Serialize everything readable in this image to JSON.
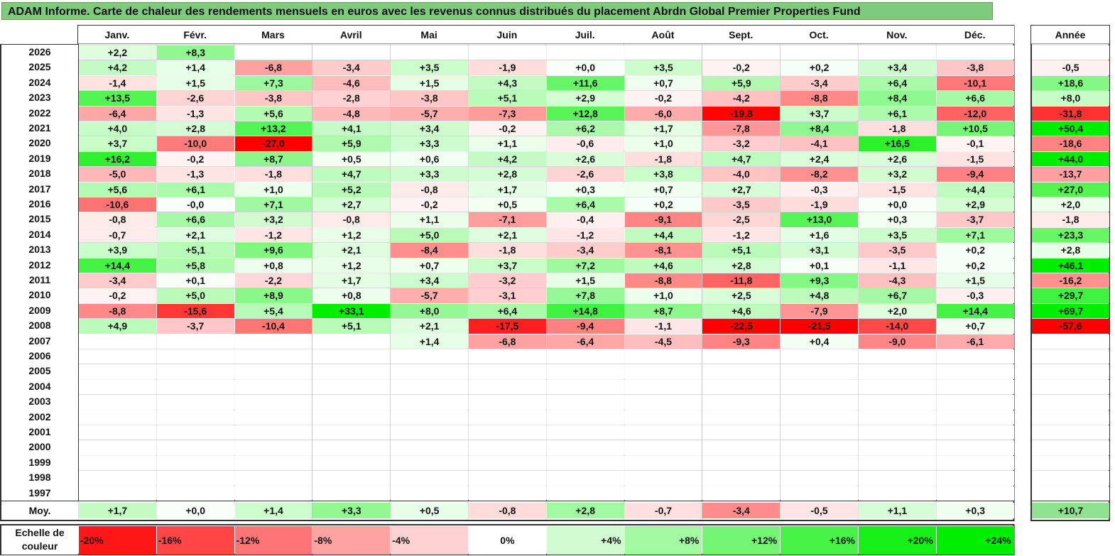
{
  "title": "ADAM Informe. Carte de chaleur des rendements mensuels en euros avec les revenus connus distribués du placement Abrdn Global Premier Properties Fund",
  "chart_data": {
    "type": "heatmap",
    "months": [
      "Janv.",
      "Févr.",
      "Mars",
      "Avril",
      "Mai",
      "Juin",
      "Juil.",
      "Août",
      "Sept.",
      "Oct.",
      "Nov.",
      "Déc."
    ],
    "year_header": "Année",
    "avg_label": "Moy.",
    "rows": [
      {
        "year": "2026",
        "m": [
          "+2,2",
          "+8,3",
          "",
          "",
          "",
          "",
          "",
          "",
          "",
          "",
          "",
          ""
        ],
        "y": ""
      },
      {
        "year": "2025",
        "m": [
          "+4,2",
          "+1,4",
          "-6,8",
          "-3,4",
          "+3,5",
          "-1,9",
          "+0,0",
          "+3,5",
          "-0,2",
          "+0,2",
          "+3,4",
          "-3,8"
        ],
        "y": "-0,5"
      },
      {
        "year": "2024",
        "m": [
          "-1,4",
          "+1,5",
          "+7,3",
          "-4,6",
          "+1,5",
          "+4,3",
          "+11,6",
          "+0,7",
          "+5,9",
          "-3,4",
          "+6,4",
          "-10,1"
        ],
        "y": "+18,6"
      },
      {
        "year": "2023",
        "m": [
          "+13,5",
          "-2,6",
          "-3,8",
          "-2,8",
          "-3,8",
          "+5,1",
          "+2,9",
          "-0,2",
          "-4,2",
          "-8,8",
          "+8,4",
          "+6,6"
        ],
        "y": "+8,0"
      },
      {
        "year": "2022",
        "m": [
          "-6,4",
          "-1,3",
          "+5,6",
          "-4,8",
          "-5,7",
          "-7,3",
          "+12,8",
          "-6,0",
          "-19,8",
          "+3,7",
          "+6,1",
          "-12,0"
        ],
        "y": "-31,8"
      },
      {
        "year": "2021",
        "m": [
          "+4,0",
          "+2,8",
          "+13,2",
          "+4,1",
          "+3,4",
          "-0,2",
          "+6,2",
          "+1,7",
          "-7,8",
          "+8,4",
          "-1,8",
          "+10,5"
        ],
        "y": "+50,4"
      },
      {
        "year": "2020",
        "m": [
          "+3,7",
          "-10,0",
          "-27,0",
          "+5,9",
          "+3,3",
          "+1,1",
          "-0,6",
          "+1,0",
          "-3,2",
          "-4,1",
          "+16,5",
          "-0,1"
        ],
        "y": "-18,6"
      },
      {
        "year": "2019",
        "m": [
          "+16,2",
          "-0,2",
          "+8,7",
          "+0,5",
          "+0,6",
          "+4,2",
          "+2,6",
          "-1,8",
          "+4,7",
          "+2,4",
          "+2,6",
          "-1,5"
        ],
        "y": "+44,0"
      },
      {
        "year": "2018",
        "m": [
          "-5,0",
          "-1,3",
          "-1,8",
          "+4,7",
          "+3,3",
          "+2,8",
          "-2,6",
          "+3,8",
          "-4,0",
          "-8,2",
          "+3,2",
          "-9,4"
        ],
        "y": "-13,7"
      },
      {
        "year": "2017",
        "m": [
          "+5,6",
          "+6,1",
          "+1,0",
          "+5,2",
          "-0,8",
          "+1,7",
          "+0,3",
          "+0,7",
          "+2,7",
          "-0,3",
          "-1,5",
          "+4,4"
        ],
        "y": "+27,0"
      },
      {
        "year": "2016",
        "m": [
          "-10,6",
          "-0,0",
          "+7,1",
          "+2,7",
          "-0,2",
          "+0,5",
          "+6,4",
          "+0,2",
          "-3,5",
          "-1,9",
          "+0,0",
          "+2,9"
        ],
        "y": "+2,0"
      },
      {
        "year": "2015",
        "m": [
          "-0,8",
          "+6,6",
          "+3,2",
          "-0,8",
          "+1,1",
          "-7,1",
          "-0,4",
          "-9,1",
          "-2,5",
          "+13,0",
          "+0,3",
          "-3,7"
        ],
        "y": "-1,8"
      },
      {
        "year": "2014",
        "m": [
          "-0,7",
          "+2,1",
          "-1,2",
          "+1,2",
          "+5,0",
          "+2,1",
          "-1,2",
          "+4,4",
          "-1,2",
          "+1,6",
          "+3,5",
          "+7,1"
        ],
        "y": "+23,3"
      },
      {
        "year": "2013",
        "m": [
          "+3,9",
          "+5,1",
          "+9,6",
          "+2,1",
          "-8,4",
          "-1,8",
          "-3,4",
          "-8,1",
          "+5,1",
          "+3,1",
          "-3,5",
          "+0,2"
        ],
        "y": "+2,8"
      },
      {
        "year": "2012",
        "m": [
          "+14,4",
          "+5,8",
          "+0,8",
          "+1,2",
          "+0,7",
          "+3,7",
          "+7,2",
          "+4,6",
          "+2,8",
          "+0,1",
          "-1,1",
          "+0,2"
        ],
        "y": "+46,1"
      },
      {
        "year": "2011",
        "m": [
          "-3,4",
          "+0,1",
          "-2,2",
          "+1,7",
          "+3,4",
          "-3,2",
          "+1,5",
          "-8,8",
          "-11,8",
          "+9,3",
          "-4,3",
          "+1,5"
        ],
        "y": "-16,2"
      },
      {
        "year": "2010",
        "m": [
          "-0,2",
          "+5,0",
          "+8,9",
          "+0,8",
          "-5,7",
          "-3,1",
          "+7,8",
          "+1,0",
          "+2,5",
          "+4,8",
          "+6,7",
          "-0,3"
        ],
        "y": "+29,7"
      },
      {
        "year": "2009",
        "m": [
          "-8,8",
          "-15,6",
          "+5,4",
          "+33,1",
          "+8,0",
          "+6,4",
          "+14,8",
          "+8,7",
          "+4,6",
          "-7,9",
          "+2,0",
          "+14,4"
        ],
        "y": "+69,7"
      },
      {
        "year": "2008",
        "m": [
          "+4,9",
          "-3,7",
          "-10,4",
          "+5,1",
          "+2,1",
          "-17,5",
          "-9,4",
          "-1,1",
          "-22,5",
          "-21,5",
          "-14,0",
          "+0,7"
        ],
        "y": "-57,6"
      },
      {
        "year": "2007",
        "m": [
          "",
          "",
          "",
          "",
          "+1,4",
          "-6,8",
          "-6,4",
          "-4,5",
          "-9,3",
          "+0,4",
          "-9,0",
          "-6,1"
        ],
        "y": ""
      },
      {
        "year": "2006",
        "m": [
          "",
          "",
          "",
          "",
          "",
          "",
          "",
          "",
          "",
          "",
          "",
          ""
        ],
        "y": ""
      },
      {
        "year": "2005",
        "m": [
          "",
          "",
          "",
          "",
          "",
          "",
          "",
          "",
          "",
          "",
          "",
          ""
        ],
        "y": ""
      },
      {
        "year": "2004",
        "m": [
          "",
          "",
          "",
          "",
          "",
          "",
          "",
          "",
          "",
          "",
          "",
          ""
        ],
        "y": ""
      },
      {
        "year": "2003",
        "m": [
          "",
          "",
          "",
          "",
          "",
          "",
          "",
          "",
          "",
          "",
          "",
          ""
        ],
        "y": ""
      },
      {
        "year": "2002",
        "m": [
          "",
          "",
          "",
          "",
          "",
          "",
          "",
          "",
          "",
          "",
          "",
          ""
        ],
        "y": ""
      },
      {
        "year": "2001",
        "m": [
          "",
          "",
          "",
          "",
          "",
          "",
          "",
          "",
          "",
          "",
          "",
          ""
        ],
        "y": ""
      },
      {
        "year": "2000",
        "m": [
          "",
          "",
          "",
          "",
          "",
          "",
          "",
          "",
          "",
          "",
          "",
          ""
        ],
        "y": ""
      },
      {
        "year": "1999",
        "m": [
          "",
          "",
          "",
          "",
          "",
          "",
          "",
          "",
          "",
          "",
          "",
          ""
        ],
        "y": ""
      },
      {
        "year": "1998",
        "m": [
          "",
          "",
          "",
          "",
          "",
          "",
          "",
          "",
          "",
          "",
          "",
          ""
        ],
        "y": ""
      },
      {
        "year": "1997",
        "m": [
          "",
          "",
          "",
          "",
          "",
          "",
          "",
          "",
          "",
          "",
          "",
          ""
        ],
        "y": ""
      }
    ],
    "averages": {
      "m": [
        "+1,7",
        "+0,0",
        "+1,4",
        "+3,3",
        "+0,5",
        "-0,8",
        "+2,8",
        "-0,7",
        "-3,4",
        "-0,5",
        "+1,1",
        "+0,3"
      ],
      "y": "+10,7"
    },
    "scale_label": "Echelle de couleur",
    "scale": [
      "-20%",
      "-16%",
      "-12%",
      "-8%",
      "-4%",
      "0%",
      "+4%",
      "+8%",
      "+12%",
      "+16%",
      "+20%",
      "+24%"
    ],
    "colors": {
      "negative_max": "#ff0000",
      "positive_max": "#00ee00",
      "neutral": "#ffffff",
      "title_bg": "#7ecb7e"
    }
  }
}
